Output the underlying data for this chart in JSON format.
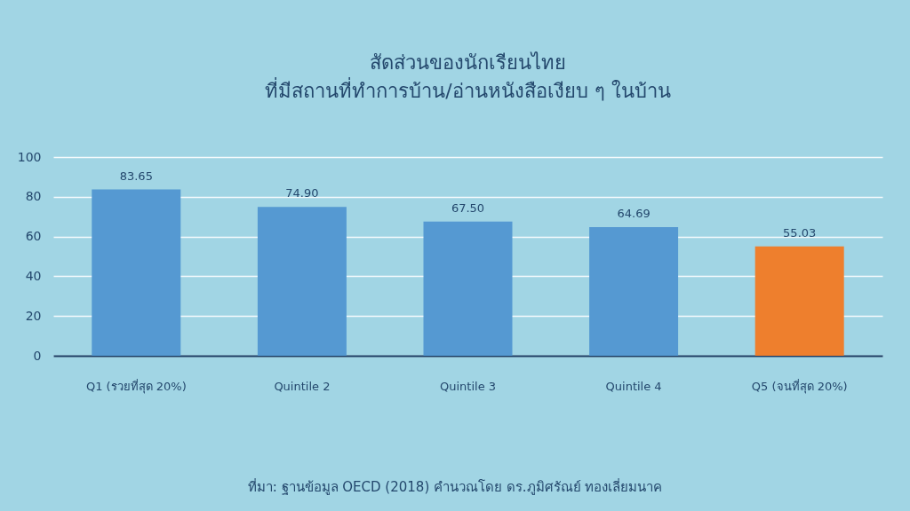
{
  "chart_data": {
    "type": "bar",
    "title": "สัดส่วนของนักเรียนไทย\nที่มีสถานที่ทำการบ้าน/อ่านหนังสือเงียบ ๆ ในบ้าน",
    "categories": [
      "Q1 (รวยที่สุด 20%)",
      "Quintile 2",
      "Quintile 3",
      "Quintile 4",
      "Q5 (จนที่สุด 20%)"
    ],
    "values": [
      83.65,
      74.9,
      67.5,
      64.69,
      55.03
    ],
    "value_labels": [
      "83.65",
      "74.90",
      "67.50",
      "64.69",
      "55.03"
    ],
    "colors": [
      "#5599d2",
      "#5599d2",
      "#5599d2",
      "#5599d2",
      "#ee7f2d"
    ],
    "ylim": [
      0,
      100
    ],
    "yticks": [
      0,
      20,
      40,
      60,
      80,
      100
    ],
    "grid": "y",
    "annotations": [
      "ที่มา: ฐานข้อมูล OECD (2018) คำนวณโดย ดร.ภูมิศรัณย์ ทองเลี่ยมนาค"
    ]
  }
}
